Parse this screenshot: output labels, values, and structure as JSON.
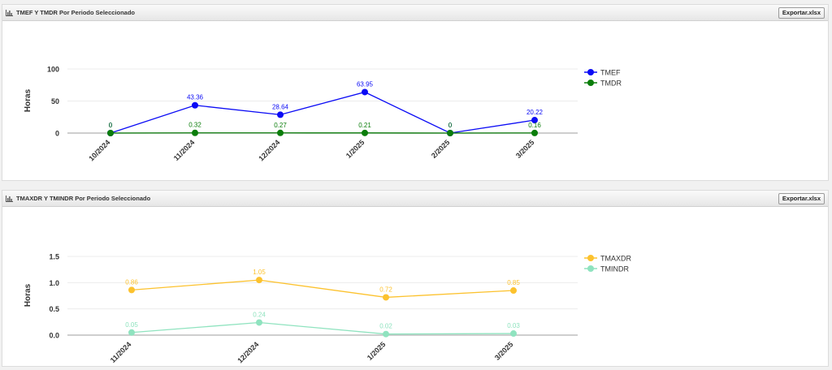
{
  "panels": [
    {
      "title": "TMEF Y TMDR Por Periodo Seleccionado",
      "export_label": "Exportar.xlsx",
      "icon": "bar-chart-icon"
    },
    {
      "title": "TMAXDR Y TMINDR Por Periodo Seleccionado",
      "export_label": "Exportar.xlsx",
      "icon": "bar-chart-icon"
    }
  ],
  "chart_data": [
    {
      "type": "line",
      "ylabel": "Horas",
      "categories": [
        "10/2024",
        "11/2024",
        "12/2024",
        "1/2025",
        "2/2025",
        "3/2025"
      ],
      "yticks": [
        "0",
        "50",
        "100"
      ],
      "ylim": [
        0,
        100
      ],
      "legend_position": "top-right",
      "series": [
        {
          "name": "TMEF",
          "color": "#0b0bf5",
          "values": [
            0,
            43.36,
            28.64,
            63.95,
            0,
            20.22
          ],
          "labels": [
            "0",
            "43.36",
            "28.64",
            "63.95",
            "0",
            "20.22"
          ]
        },
        {
          "name": "TMDR",
          "color": "#0a7d0a",
          "values": [
            0,
            0.32,
            0.27,
            0.21,
            0,
            0.16
          ],
          "labels": [
            "0",
            "0.32",
            "0.27",
            "0.21",
            "0",
            "0.16"
          ]
        }
      ]
    },
    {
      "type": "line",
      "ylabel": "Horas",
      "categories": [
        "11/2024",
        "12/2024",
        "1/2025",
        "3/2025"
      ],
      "yticks": [
        "0.0",
        "0.5",
        "1.0",
        "1.5"
      ],
      "ylim": [
        0,
        1.5
      ],
      "legend_position": "top-right",
      "series": [
        {
          "name": "TMAXDR",
          "color": "#fcc22e",
          "values": [
            0.86,
            1.05,
            0.72,
            0.85
          ],
          "labels": [
            "0.86",
            "1.05",
            "0.72",
            "0.85"
          ]
        },
        {
          "name": "TMINDR",
          "color": "#8fe3bf",
          "values": [
            0.05,
            0.24,
            0.02,
            0.03
          ],
          "labels": [
            "0.05",
            "0.24",
            "0.02",
            "0.03"
          ]
        }
      ]
    }
  ]
}
